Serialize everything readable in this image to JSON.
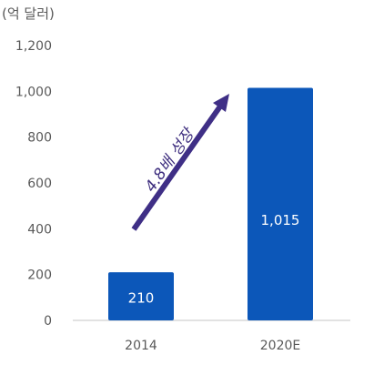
{
  "unit_label": "(억 달러)",
  "annotation": "4.8배 성장",
  "colors": {
    "bar": "#0c57b9",
    "arrow": "#3f2f86",
    "axis_text": "#595959",
    "baseline": "#d9d9d9",
    "bar_label": "#ffffff"
  },
  "chart_data": {
    "type": "bar",
    "categories": [
      "2014",
      "2020E"
    ],
    "values": [
      210,
      1015
    ],
    "value_labels": [
      "210",
      "1,015"
    ],
    "yticks": [
      "0",
      "200",
      "400",
      "600",
      "800",
      "1,000",
      "1,200"
    ],
    "ylim": [
      0,
      1200
    ],
    "grid": false,
    "legend": "none"
  }
}
